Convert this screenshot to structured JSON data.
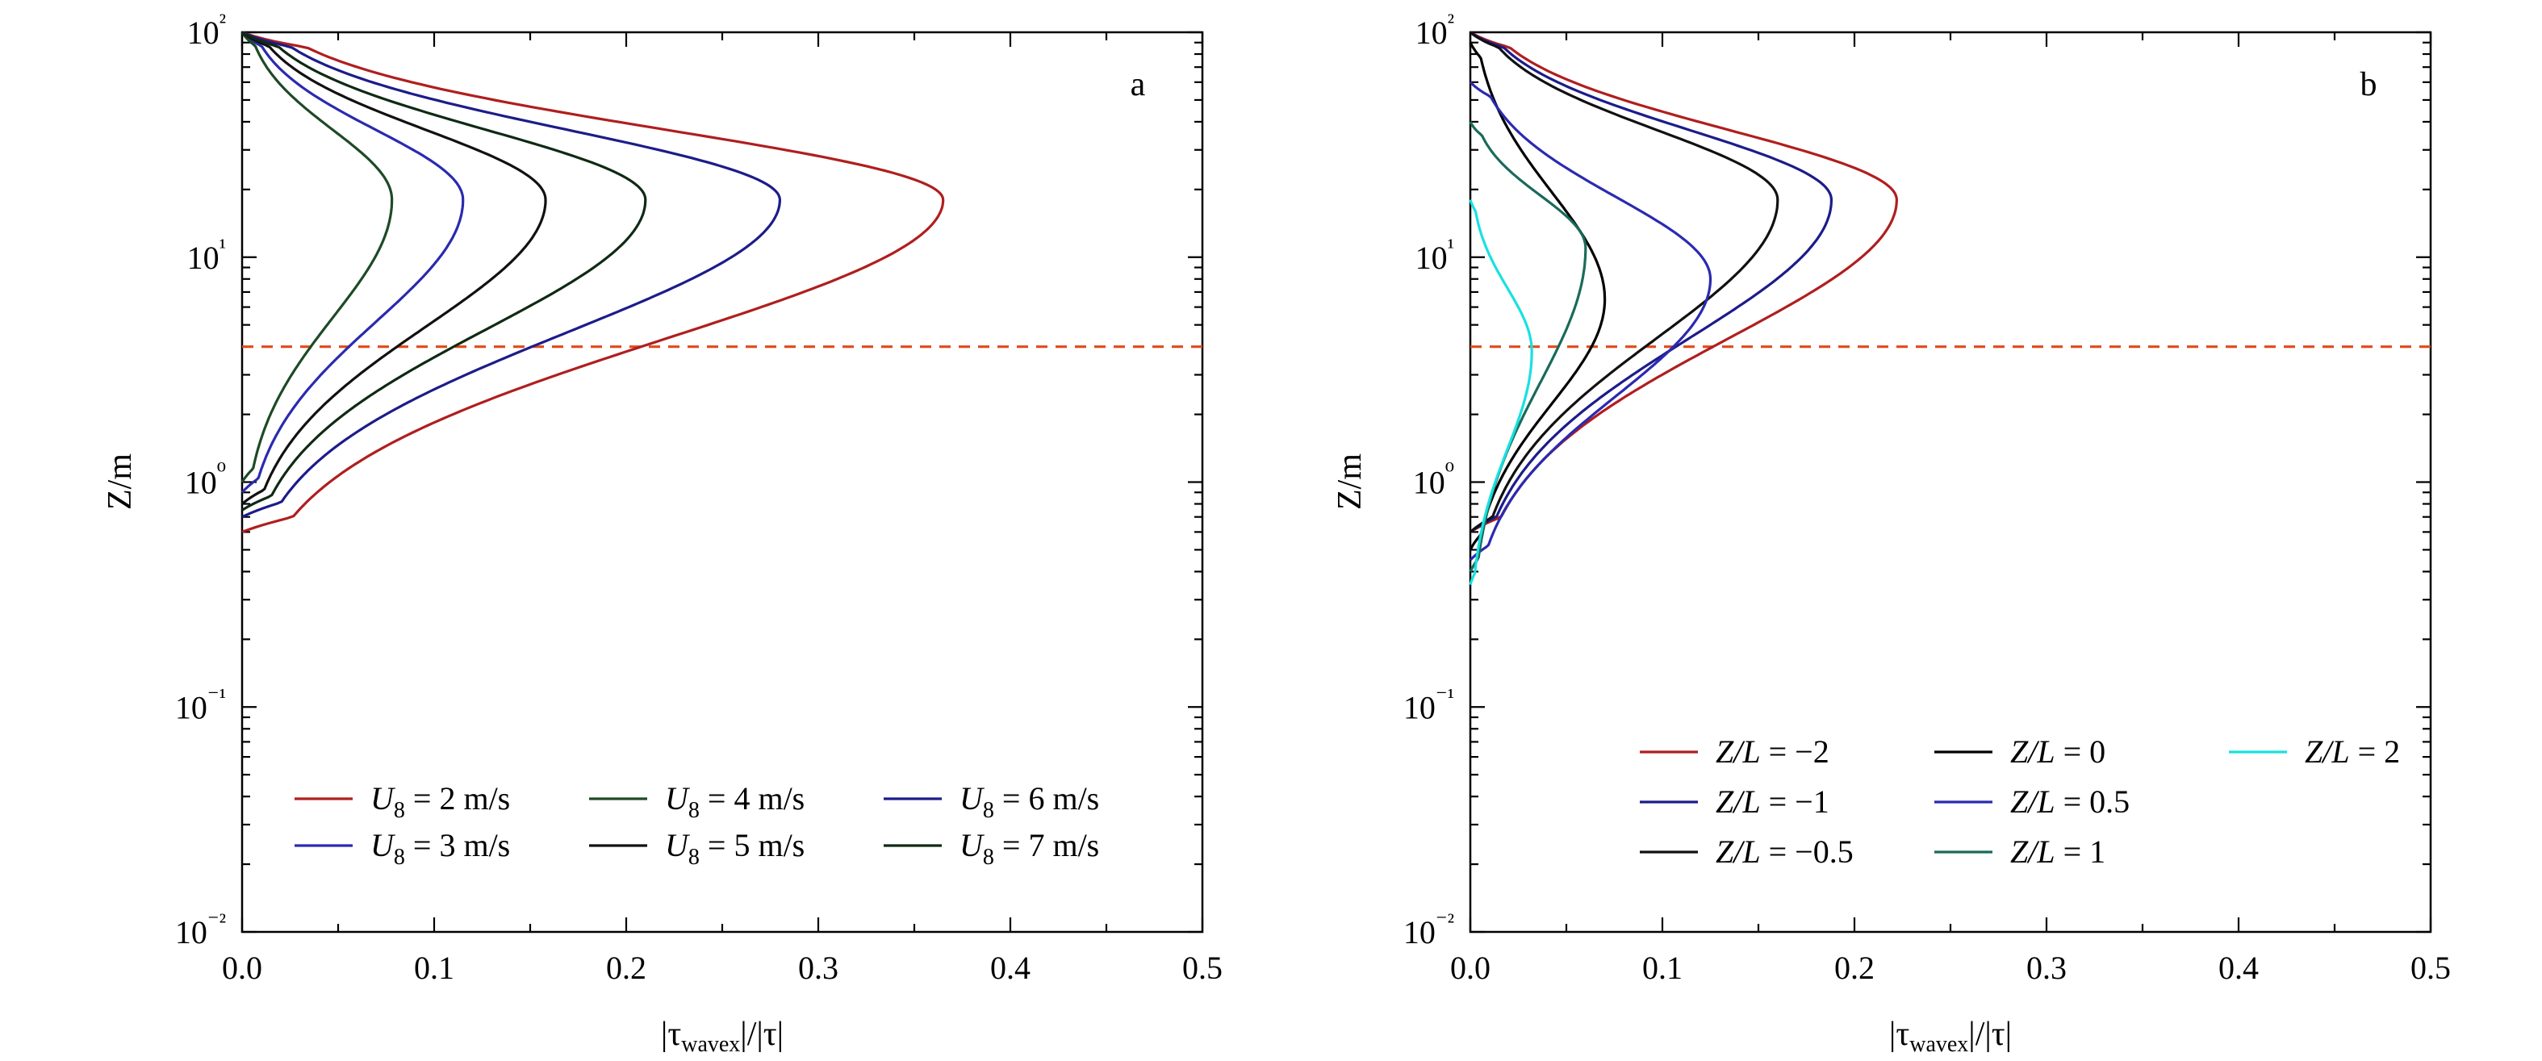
{
  "chart_data": [
    {
      "type": "line",
      "panel_label": "a",
      "xlabel": "|τwavex|/|τ|",
      "ylabel": "Z/m",
      "xlim": [
        0.0,
        0.5
      ],
      "ylim": [
        0.01,
        100
      ],
      "yscale": "log",
      "xticks": [
        "0.0",
        "0.1",
        "0.2",
        "0.3",
        "0.4",
        "0.5"
      ],
      "yticks": [
        "10⁻²",
        "10⁻¹",
        "10⁰",
        "10¹",
        "10²"
      ],
      "legend_position": "bottom",
      "reference_line": {
        "y": 4.0,
        "color": "#e04a1a",
        "style": "dashed"
      },
      "series": [
        {
          "name": "U8 = 2 m/s",
          "color": "#b01e1e",
          "peak_x": 0.365,
          "peak_z": 18.0,
          "z_min": 0.6,
          "legend_col": 0,
          "legend_row": 0,
          "legend_parts": [
            "U",
            "8",
            " = 2 m/s"
          ]
        },
        {
          "name": "U8 = 3 m/s",
          "color": "#2a2ab0",
          "peak_x": 0.115,
          "peak_z": 18.0,
          "z_min": 0.9,
          "legend_col": 0,
          "legend_row": 1,
          "legend_parts": [
            "U",
            "8",
            " = 3 m/s"
          ]
        },
        {
          "name": "U8 = 4 m/s",
          "color": "#1e4a26",
          "peak_x": 0.078,
          "peak_z": 18.0,
          "z_min": 1.0,
          "legend_col": 1,
          "legend_row": 0,
          "legend_parts": [
            "U",
            "8",
            " = 4 m/s"
          ]
        },
        {
          "name": "U8 = 5 m/s",
          "color": "#111111",
          "peak_x": 0.158,
          "peak_z": 18.0,
          "z_min": 0.8,
          "legend_col": 1,
          "legend_row": 1,
          "legend_parts": [
            "U",
            "8",
            " = 5 m/s"
          ]
        },
        {
          "name": "U8 = 6 m/s",
          "color": "#1c1c8a",
          "peak_x": 0.28,
          "peak_z": 18.0,
          "z_min": 0.7,
          "legend_col": 2,
          "legend_row": 0,
          "legend_parts": [
            "U",
            "8",
            " = 6 m/s"
          ]
        },
        {
          "name": "U8 = 7 m/s",
          "color": "#0f2a14",
          "peak_x": 0.21,
          "peak_z": 18.0,
          "z_min": 0.75,
          "legend_col": 2,
          "legend_row": 1,
          "legend_parts": [
            "U",
            "8",
            " = 7 m/s"
          ]
        }
      ]
    },
    {
      "type": "line",
      "panel_label": "b",
      "xlabel": "|τwavex|/|τ|",
      "ylabel": "Z/m",
      "xlim": [
        0.0,
        0.5
      ],
      "ylim": [
        0.01,
        100
      ],
      "yscale": "log",
      "xticks": [
        "0.0",
        "0.1",
        "0.2",
        "0.3",
        "0.4",
        "0.5"
      ],
      "yticks": [
        "10⁻²",
        "10⁻¹",
        "10⁰",
        "10¹",
        "10²"
      ],
      "legend_position": "bottom",
      "reference_line": {
        "y": 4.0,
        "color": "#e04a1a",
        "style": "dashed"
      },
      "series": [
        {
          "name": "Z/L = −2",
          "color": "#b01e1e",
          "peak_x": 0.222,
          "peak_z": 18.0,
          "z_min": 0.6,
          "z_max": 100,
          "legend_col": 0,
          "legend_row": 0,
          "legend_parts": [
            "Z/L",
            "",
            " = −2"
          ]
        },
        {
          "name": "Z/L = −1",
          "color": "#1c1c8a",
          "peak_x": 0.188,
          "peak_z": 18.0,
          "z_min": 0.6,
          "z_max": 100,
          "legend_col": 0,
          "legend_row": 1,
          "legend_parts": [
            "Z/L",
            "",
            " = −1"
          ]
        },
        {
          "name": "Z/L = −0.5",
          "color": "#111111",
          "peak_x": 0.16,
          "peak_z": 18.0,
          "z_min": 0.6,
          "z_max": 100,
          "legend_col": 0,
          "legend_row": 2,
          "legend_parts": [
            "Z/L",
            "",
            " = −0.5"
          ]
        },
        {
          "name": "Z/L = 0",
          "color": "#000000",
          "peak_x": 0.07,
          "peak_z": 6.5,
          "z_min": 0.5,
          "z_max": 90,
          "legend_col": 1,
          "legend_row": 0,
          "legend_parts": [
            "Z/L",
            "",
            " = 0"
          ]
        },
        {
          "name": "Z/L = 0.5",
          "color": "#2a2ab0",
          "peak_x": 0.125,
          "peak_z": 8.0,
          "z_min": 0.45,
          "z_max": 60,
          "legend_col": 1,
          "legend_row": 1,
          "legend_parts": [
            "Z/L",
            "",
            " = 0.5"
          ]
        },
        {
          "name": "Z/L = 1",
          "color": "#1a6a5a",
          "peak_x": 0.06,
          "peak_z": 11.0,
          "z_min": 0.4,
          "z_max": 40,
          "legend_col": 1,
          "legend_row": 2,
          "legend_parts": [
            "Z/L",
            "",
            " = 1"
          ]
        },
        {
          "name": "Z/L = 2",
          "color": "#19e0e0",
          "peak_x": 0.032,
          "peak_z": 3.8,
          "z_min": 0.35,
          "z_max": 18,
          "legend_col": 2,
          "legend_row": 0,
          "legend_parts": [
            "Z/L",
            "",
            " = 2"
          ]
        }
      ]
    }
  ]
}
